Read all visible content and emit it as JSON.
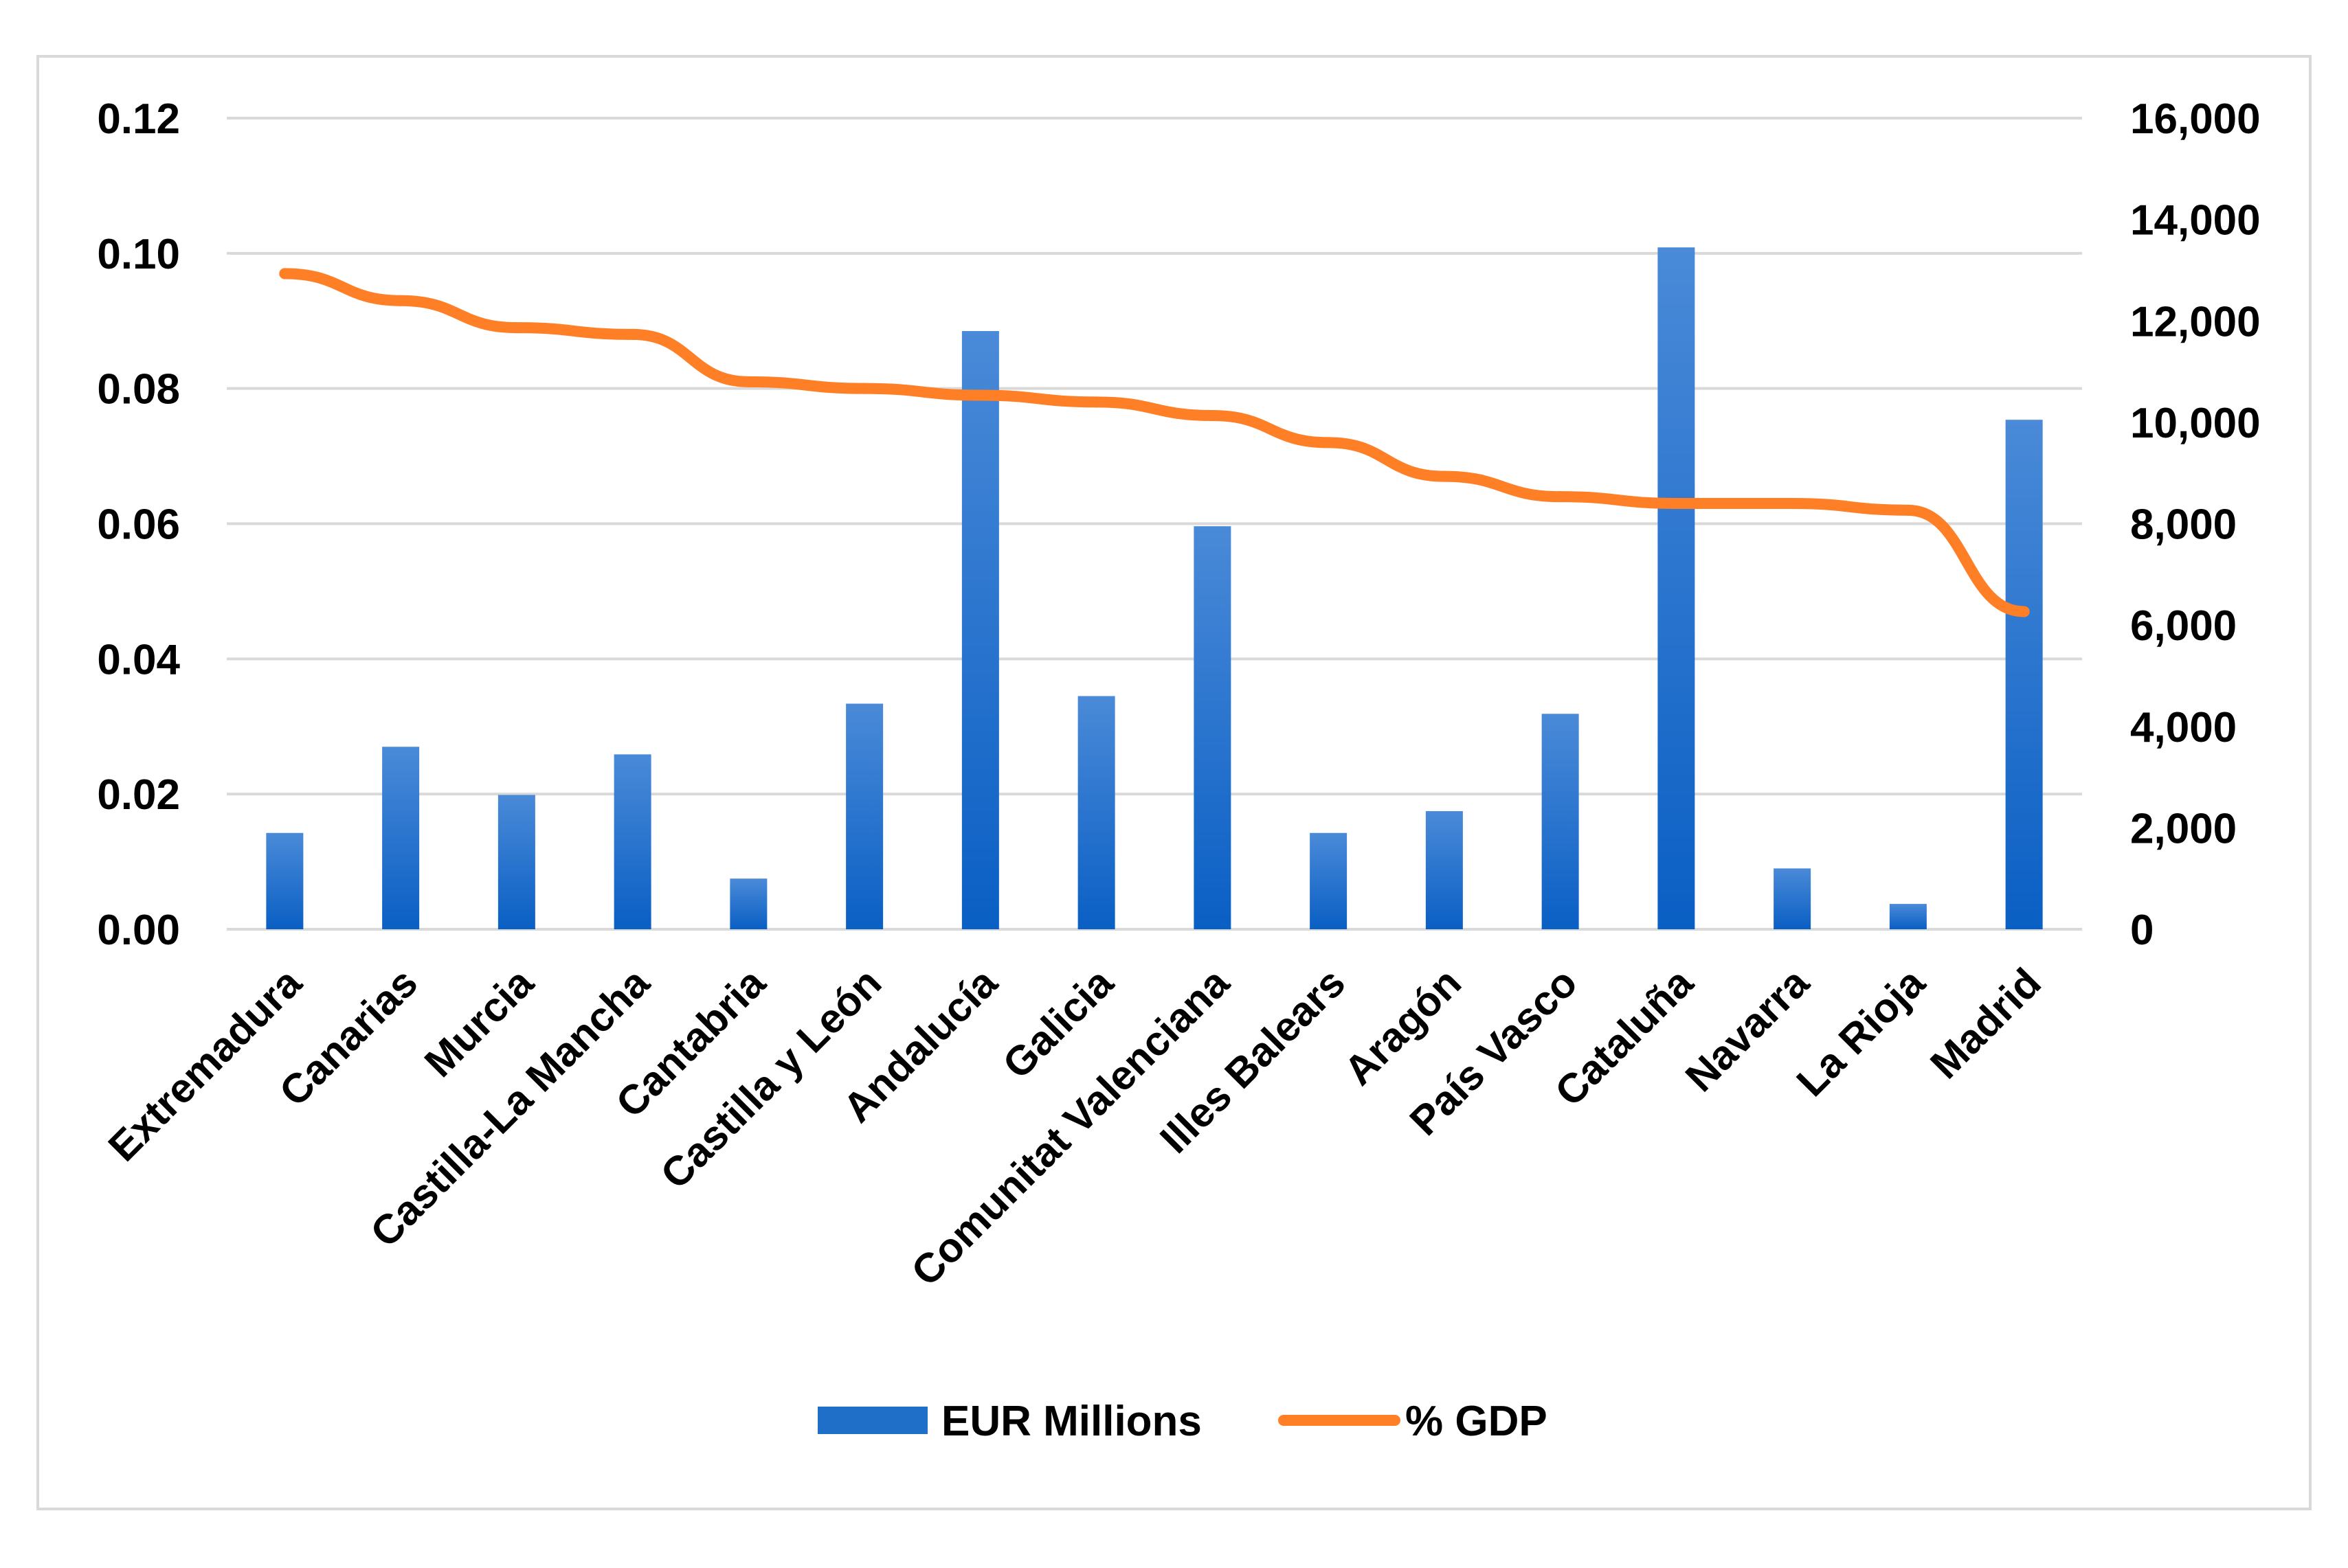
{
  "chart_data": {
    "type": "bar",
    "title": "",
    "xlabel": "",
    "ylabel": "",
    "categories": [
      "Extremadura",
      "Canarias",
      "Murcia",
      "Castilla-La Mancha",
      "Cantabria",
      "Castilla y León",
      "Andalucía",
      "Galicia",
      "Comunitat Valenciana",
      "Illes Balears",
      "Aragón",
      "País Vasco",
      "Cataluña",
      "Navarra",
      "La Rioja",
      "Madrid"
    ],
    "series": [
      {
        "name": "EUR Millions",
        "type": "bar",
        "axis": "right",
        "color": "#1f6fc9",
        "values": [
          1900,
          3600,
          2650,
          3450,
          1000,
          4450,
          11800,
          4600,
          7950,
          1900,
          2330,
          4250,
          13450,
          1200,
          500,
          10050
        ]
      },
      {
        "name": "% GDP",
        "type": "line",
        "axis": "left",
        "color": "#ff7f27",
        "values": [
          0.097,
          0.093,
          0.089,
          0.088,
          0.081,
          0.08,
          0.079,
          0.078,
          0.076,
          0.072,
          0.067,
          0.064,
          0.063,
          0.063,
          0.062,
          0.047
        ]
      }
    ],
    "y_left": {
      "ylim": [
        0,
        0.12
      ],
      "ticks": [
        "0.00",
        "0.02",
        "0.04",
        "0.06",
        "0.08",
        "0.10",
        "0.12"
      ]
    },
    "y_right": {
      "ylim": [
        0,
        16000
      ],
      "ticks": [
        "0",
        "2,000",
        "4,000",
        "6,000",
        "8,000",
        "10,000",
        "12,000",
        "14,000",
        "16,000"
      ]
    },
    "grid": true,
    "legend": {
      "position": "bottom",
      "entries": [
        "EUR Millions",
        "% GDP"
      ]
    }
  }
}
